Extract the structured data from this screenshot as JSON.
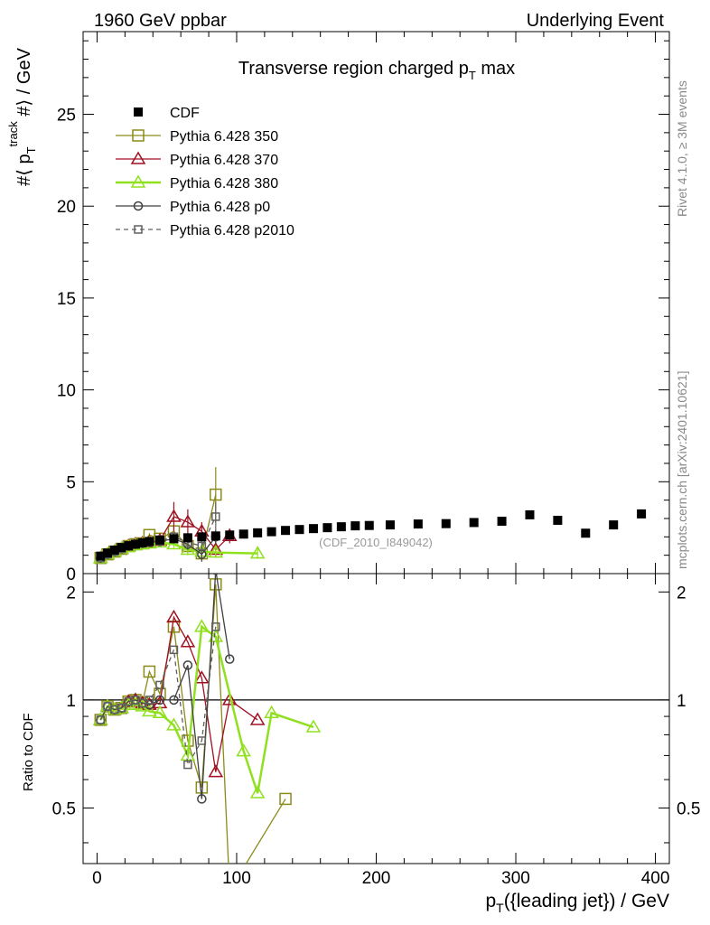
{
  "header": {
    "left": "1960 GeV ppbar",
    "right": "Underlying Event"
  },
  "side_labels": {
    "top": "Rivet 4.1.0, ≥ 3M events",
    "bottom": "mcplots.cern.ch [arXiv:2401.10621]"
  },
  "colors": {
    "cdf": "#000000",
    "p350": "#8b8b1a",
    "p370": "#a01020",
    "p380": "#90e020",
    "p0": "#404040",
    "p2010": "#606060"
  },
  "chart_data": [
    {
      "type": "scatter",
      "title": "Transverse region charged p_T max",
      "ylabel": "#⟨ p_T^track #⟩ / GeV",
      "xlim": [
        -10,
        410
      ],
      "ylim": [
        0,
        29.5
      ],
      "yticks": [
        0,
        5,
        10,
        15,
        20,
        25
      ],
      "watermark": "(CDF_2010_I849042)",
      "legend_position": "top-left",
      "series": [
        {
          "name": "CDF",
          "key": "cdf",
          "marker": "filled-square",
          "line": "none",
          "x": [
            2.5,
            7.5,
            12.5,
            17.5,
            22.5,
            27.5,
            32.5,
            37.5,
            45,
            55,
            65,
            75,
            85,
            95,
            105,
            115,
            125,
            135,
            145,
            155,
            165,
            175,
            185,
            195,
            210,
            230,
            250,
            270,
            290,
            310,
            330,
            350,
            370,
            390
          ],
          "y": [
            0.95,
            1.12,
            1.28,
            1.42,
            1.52,
            1.6,
            1.68,
            1.75,
            1.83,
            1.9,
            1.95,
            2.0,
            2.05,
            2.1,
            2.15,
            2.22,
            2.28,
            2.35,
            2.4,
            2.45,
            2.5,
            2.55,
            2.6,
            2.62,
            2.65,
            2.7,
            2.72,
            2.78,
            2.85,
            3.2,
            2.9,
            2.2,
            2.65,
            3.25
          ]
        },
        {
          "name": "Pythia 6.428 350",
          "key": "p350",
          "marker": "open-square",
          "line": "solid",
          "x": [
            2.5,
            7.5,
            12.5,
            17.5,
            22.5,
            27.5,
            32.5,
            37.5,
            45,
            55,
            65,
            75,
            85
          ],
          "y": [
            0.85,
            1.05,
            1.2,
            1.35,
            1.5,
            1.6,
            1.65,
            2.1,
            1.9,
            2.3,
            1.5,
            1.1,
            4.3
          ],
          "err": [
            0.05,
            0.05,
            0.05,
            0.05,
            0.05,
            0.06,
            0.08,
            0.1,
            0.15,
            0.3,
            0.4,
            0.4,
            1.5
          ]
        },
        {
          "name": "Pythia 6.428 370",
          "key": "p370",
          "marker": "open-triangle",
          "line": "solid",
          "x": [
            2.5,
            7.5,
            12.5,
            17.5,
            22.5,
            27.5,
            32.5,
            37.5,
            45,
            55,
            65,
            75,
            85,
            95
          ],
          "y": [
            0.85,
            1.05,
            1.2,
            1.35,
            1.5,
            1.6,
            1.65,
            1.7,
            1.8,
            3.1,
            2.8,
            2.3,
            1.3,
            2.05
          ],
          "err": [
            0.05,
            0.05,
            0.05,
            0.05,
            0.05,
            0.06,
            0.08,
            0.1,
            0.2,
            0.8,
            0.7,
            0.5,
            0.4,
            0.4
          ]
        },
        {
          "name": "Pythia 6.428 380",
          "key": "p380",
          "marker": "open-triangle",
          "line": "solid-thick",
          "x": [
            2.5,
            7.5,
            12.5,
            17.5,
            22.5,
            27.5,
            32.5,
            37.5,
            45,
            55,
            65,
            75,
            85,
            115
          ],
          "y": [
            0.85,
            1.05,
            1.2,
            1.35,
            1.45,
            1.55,
            1.6,
            1.65,
            1.7,
            1.6,
            1.3,
            1.2,
            1.15,
            1.1
          ],
          "err": [
            0.05,
            0.05,
            0.05,
            0.05,
            0.05,
            0.06,
            0.08,
            0.1,
            0.15,
            0.2,
            0.3,
            0.3,
            0.3,
            0.3
          ]
        },
        {
          "name": "Pythia 6.428 p0",
          "key": "p0",
          "marker": "open-circle",
          "line": "solid",
          "x": [
            2.5,
            7.5,
            12.5,
            17.5,
            22.5,
            27.5,
            32.5,
            37.5,
            45,
            55,
            65,
            75,
            85
          ],
          "y": [
            0.85,
            1.05,
            1.2,
            1.35,
            1.5,
            1.6,
            1.65,
            1.7,
            1.75,
            1.9,
            1.6,
            1.05,
            2.0
          ],
          "err": [
            0.05,
            0.05,
            0.05,
            0.05,
            0.05,
            0.06,
            0.08,
            0.1,
            0.15,
            0.2,
            0.3,
            0.4,
            0.4
          ]
        },
        {
          "name": "Pythia 6.428 p2010",
          "key": "p2010",
          "marker": "open-square-small",
          "line": "dashed",
          "x": [
            2.5,
            7.5,
            12.5,
            17.5,
            22.5,
            27.5,
            32.5,
            37.5,
            45,
            55,
            65,
            75,
            85
          ],
          "y": [
            0.85,
            1.05,
            1.2,
            1.35,
            1.5,
            1.6,
            1.65,
            1.75,
            1.8,
            2.0,
            1.7,
            1.5,
            3.1
          ],
          "err": [
            0.05,
            0.05,
            0.05,
            0.05,
            0.05,
            0.06,
            0.08,
            0.1,
            0.15,
            0.2,
            0.3,
            0.4,
            0.8
          ]
        }
      ]
    },
    {
      "type": "line",
      "ylabel": "Ratio to CDF",
      "xlabel": "p_T({leading jet}) / GeV",
      "xlim": [
        -10,
        410
      ],
      "ylim": [
        0.35,
        2.25
      ],
      "scale": "log-y",
      "xticks": [
        0,
        100,
        200,
        300,
        400
      ],
      "yticks": [
        0.5,
        1,
        2
      ],
      "reference_line": 1,
      "series": [
        {
          "key": "p350",
          "marker": "open-square",
          "x": [
            2.5,
            7.5,
            12.5,
            17.5,
            22.5,
            27.5,
            32.5,
            37.5,
            45,
            55,
            65,
            75,
            85,
            95,
            135
          ],
          "y": [
            0.88,
            0.96,
            0.94,
            0.95,
            0.99,
            1.0,
            0.98,
            1.2,
            1.04,
            1.6,
            0.77,
            0.57,
            2.1,
            0.0,
            0.53
          ]
        },
        {
          "key": "p370",
          "marker": "open-triangle",
          "x": [
            2.5,
            7.5,
            12.5,
            17.5,
            22.5,
            27.5,
            32.5,
            37.5,
            45,
            55,
            65,
            75,
            85,
            95,
            115
          ],
          "y": [
            0.88,
            0.96,
            0.94,
            0.95,
            0.99,
            1.0,
            0.98,
            0.97,
            0.98,
            1.7,
            1.45,
            1.15,
            0.63,
            1.0,
            0.88
          ]
        },
        {
          "key": "p380",
          "marker": "open-triangle",
          "x": [
            2.5,
            7.5,
            12.5,
            17.5,
            22.5,
            27.5,
            32.5,
            37.5,
            45,
            55,
            65,
            75,
            85,
            105,
            115,
            125,
            155
          ],
          "y": [
            0.88,
            0.96,
            0.94,
            0.95,
            0.97,
            0.97,
            0.96,
            0.93,
            0.92,
            0.85,
            0.7,
            1.6,
            1.5,
            0.72,
            0.55,
            0.92,
            0.84
          ]
        },
        {
          "key": "p0",
          "marker": "open-circle",
          "x": [
            2.5,
            7.5,
            12.5,
            17.5,
            22.5,
            27.5,
            32.5,
            37.5,
            45,
            55,
            65,
            75,
            85,
            95
          ],
          "y": [
            0.88,
            0.96,
            0.94,
            0.95,
            0.99,
            1.0,
            0.98,
            0.97,
            1.0,
            1.0,
            1.25,
            0.53,
            2.3,
            1.3
          ]
        },
        {
          "key": "p2010",
          "marker": "open-square-small",
          "x": [
            2.5,
            7.5,
            12.5,
            17.5,
            22.5,
            27.5,
            32.5,
            37.5,
            45,
            55,
            65,
            75,
            85
          ],
          "y": [
            0.88,
            0.96,
            0.94,
            0.95,
            0.99,
            1.0,
            0.98,
            1.0,
            1.1,
            1.38,
            0.66,
            0.77,
            1.6
          ]
        }
      ]
    }
  ]
}
